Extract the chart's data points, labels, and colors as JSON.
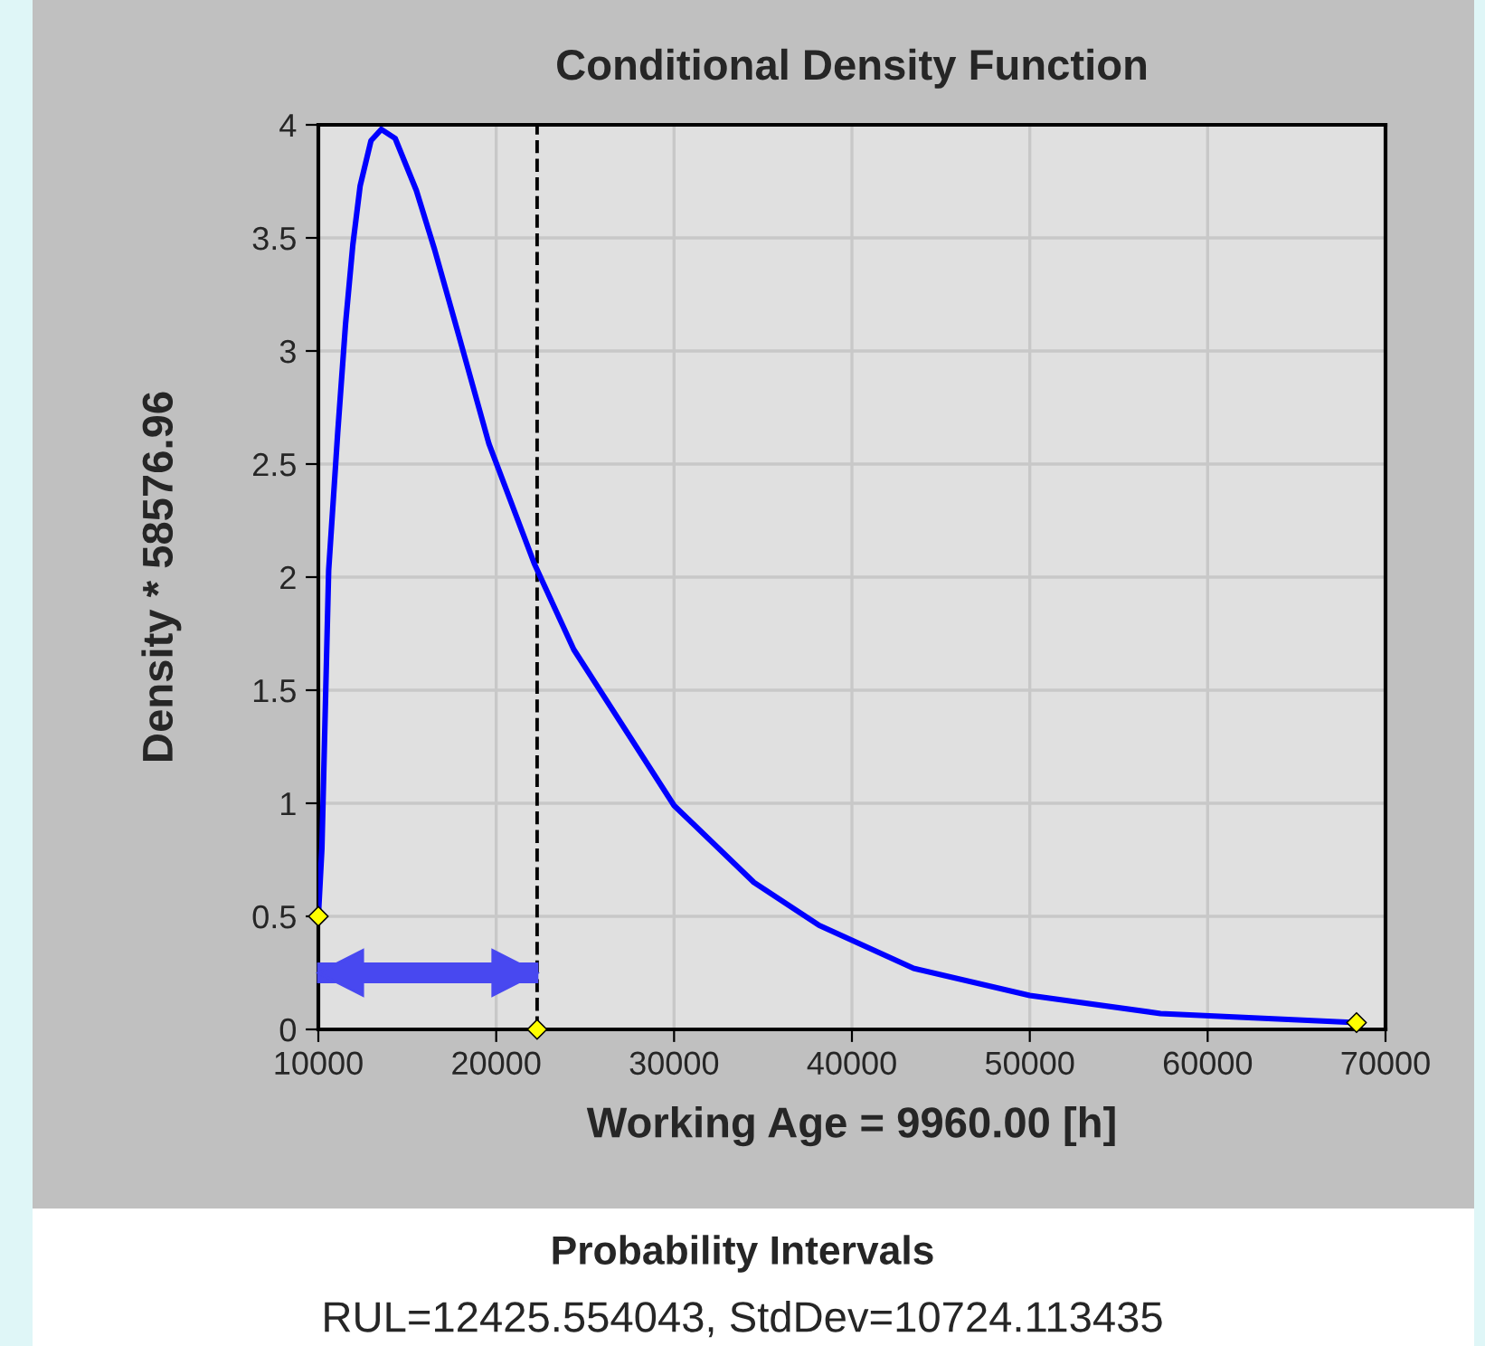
{
  "chart_data": {
    "type": "line",
    "title": "Conditional Density Function",
    "xlabel": "Working Age = 9960.00 [h]",
    "ylabel": "Density * 58576.96",
    "xlim": [
      10000,
      70000
    ],
    "xticks": [
      10000,
      20000,
      30000,
      40000,
      50000,
      60000,
      70000
    ],
    "ylim": [
      0,
      4
    ],
    "yticks": [
      0,
      0.5,
      1,
      1.5,
      2,
      2.5,
      3,
      3.5,
      4
    ],
    "grid": true,
    "series": [
      {
        "color": "#0000ff",
        "x": [
          10000,
          10200,
          10580,
          11090,
          11530,
          11940,
          12350,
          12960,
          13540,
          14320,
          15510,
          16530,
          17890,
          19590,
          22140,
          24360,
          30000,
          34490,
          38160,
          43470,
          50000,
          57350,
          68370
        ],
        "values": [
          0.5,
          0.8,
          2.03,
          2.64,
          3.12,
          3.47,
          3.73,
          3.93,
          3.98,
          3.94,
          3.71,
          3.45,
          3.07,
          2.59,
          2.06,
          1.68,
          0.99,
          0.65,
          0.46,
          0.27,
          0.15,
          0.07,
          0.03
        ]
      },
      {
        "type": "scatter",
        "color": "#ffff00",
        "marker": "diamond",
        "x": [
          10000,
          22300,
          68370
        ],
        "values": [
          0.5,
          0,
          0.03
        ]
      }
    ],
    "ref_lines": [
      {
        "axis": "x",
        "value": 22300,
        "color": "#000000",
        "line_style": "dashed"
      }
    ],
    "annotations": [
      "Probability Intervals",
      "RUL=12425.554043, StdDev=10724.113435"
    ]
  }
}
